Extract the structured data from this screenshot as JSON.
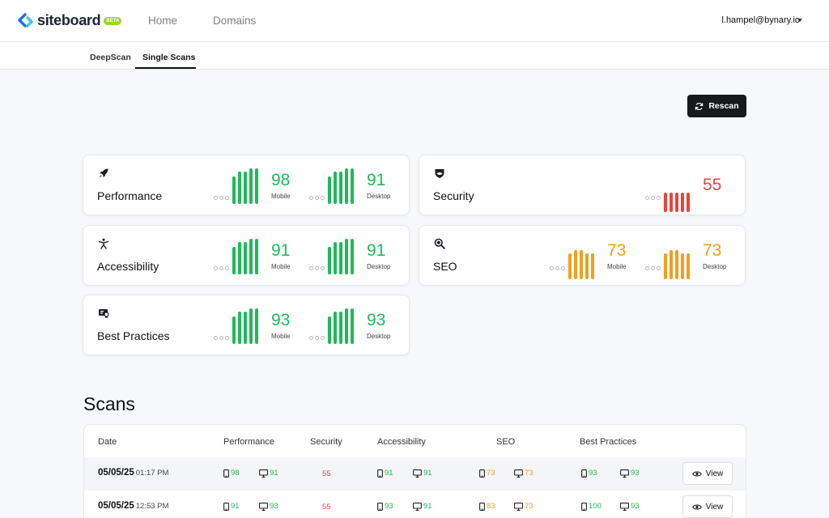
{
  "app": {
    "logo_text": "siteboard",
    "badge": "BETA"
  },
  "nav": {
    "home": "Home",
    "domains": "Domains",
    "user_email": "l.hampel@bynary.io"
  },
  "subnav": {
    "deepscan": "DeepScan",
    "single_scans": "Single Scans"
  },
  "actions": {
    "rescan": "Rescan"
  },
  "colors": {
    "green": "#20b95a",
    "orange": "#f0a020",
    "red": "#e8453c"
  },
  "cards": {
    "performance": {
      "title": "Performance",
      "icon": "rocket-icon",
      "mobile": "98",
      "desktop": "91",
      "mobile_label": "Mobile",
      "desktop_label": "Desktop"
    },
    "security": {
      "title": "Security",
      "icon": "shield-icon",
      "score": "55"
    },
    "accessibility": {
      "title": "Accessibility",
      "icon": "person-icon",
      "mobile": "91",
      "desktop": "91",
      "mobile_label": "Mobile",
      "desktop_label": "Desktop"
    },
    "seo": {
      "title": "SEO",
      "icon": "search-icon",
      "mobile": "73",
      "desktop": "73",
      "mobile_label": "Mobile",
      "desktop_label": "Desktop"
    },
    "best_practices": {
      "title": "Best Practices",
      "icon": "certificate-icon",
      "mobile": "93",
      "desktop": "93",
      "mobile_label": "Mobile",
      "desktop_label": "Desktop"
    }
  },
  "scans": {
    "title": "Scans",
    "headers": {
      "date": "Date",
      "performance": "Performance",
      "security": "Security",
      "accessibility": "Accessibility",
      "seo": "SEO",
      "best_practices": "Best Practices"
    },
    "view_label": "View",
    "rows": [
      {
        "date": "05/05/25",
        "time": "01:17 PM",
        "perf_m": "98",
        "perf_d": "91",
        "security": "55",
        "acc_m": "91",
        "acc_d": "91",
        "seo_m": "73",
        "seo_d": "73",
        "bp_m": "93",
        "bp_d": "93"
      },
      {
        "date": "05/05/25",
        "time": "12:53 PM",
        "perf_m": "91",
        "perf_d": "93",
        "security": "55",
        "acc_m": "93",
        "acc_d": "91",
        "seo_m": "83",
        "seo_d": "73",
        "bp_m": "100",
        "bp_d": "93"
      }
    ]
  }
}
